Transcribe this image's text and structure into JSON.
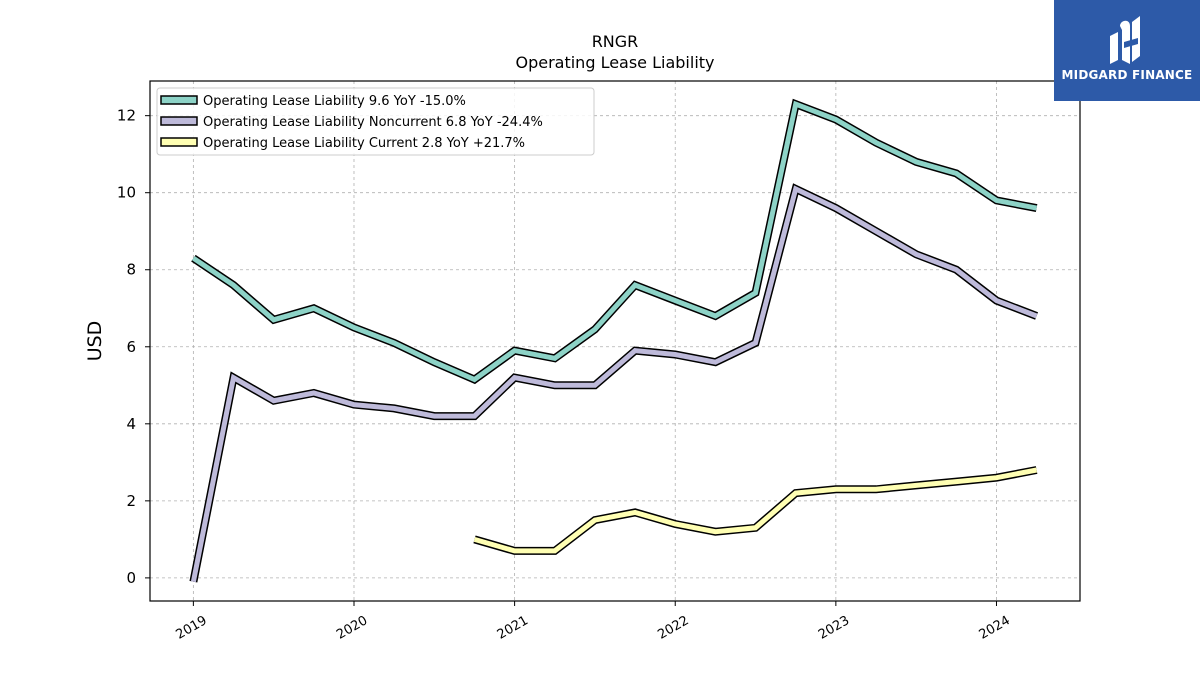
{
  "chart_data": {
    "type": "line",
    "title": "RNGR",
    "subtitle": "Operating Lease Liability",
    "ylabel": "USD",
    "xlabel": "",
    "ylim": [
      -0.6,
      12.9
    ],
    "xlim": [
      2018.73,
      2024.52
    ],
    "yticks": [
      0,
      2,
      4,
      6,
      8,
      10,
      12
    ],
    "xticks": [
      2019,
      2020,
      2021,
      2022,
      2023,
      2024
    ],
    "xtick_labels": [
      "2019",
      "2020",
      "2021",
      "2022",
      "2023",
      "2024"
    ],
    "grid": true,
    "legend_position": "top-left",
    "series": [
      {
        "name": "Operating Lease Liability  9.6 YoY -15.0%",
        "color": "#8dd3c7",
        "x": [
          2019.0,
          2019.25,
          2019.5,
          2019.75,
          2020.0,
          2020.25,
          2020.5,
          2020.75,
          2021.0,
          2021.25,
          2021.5,
          2021.75,
          2022.0,
          2022.25,
          2022.5,
          2022.75,
          2023.0,
          2023.25,
          2023.5,
          2023.75,
          2024.0,
          2024.25
        ],
        "y": [
          8.3,
          7.6,
          6.7,
          7.0,
          6.5,
          6.1,
          5.6,
          5.15,
          5.9,
          5.7,
          6.45,
          7.6,
          7.2,
          6.8,
          7.4,
          12.3,
          11.9,
          11.3,
          10.8,
          10.5,
          9.8,
          9.6
        ]
      },
      {
        "name": "Operating Lease Liability Noncurrent  6.8 YoY -24.4%",
        "color": "#bebada",
        "x": [
          2019.0,
          2019.25,
          2019.5,
          2019.75,
          2020.0,
          2020.25,
          2020.5,
          2020.75,
          2021.0,
          2021.25,
          2021.5,
          2021.75,
          2022.0,
          2022.25,
          2022.5,
          2022.75,
          2023.0,
          2023.25,
          2023.5,
          2023.75,
          2024.0,
          2024.25
        ],
        "y": [
          -0.1,
          5.2,
          4.6,
          4.8,
          4.5,
          4.4,
          4.2,
          4.2,
          5.2,
          5.0,
          5.0,
          5.9,
          5.8,
          5.6,
          6.1,
          10.1,
          9.6,
          9.0,
          8.4,
          8.0,
          7.2,
          6.8
        ]
      },
      {
        "name": "Operating Lease Liability Current  2.8 YoY +21.7%",
        "color": "#ffffb3",
        "x": [
          2020.75,
          2021.0,
          2021.25,
          2021.5,
          2021.75,
          2022.0,
          2022.25,
          2022.5,
          2022.75,
          2023.0,
          2023.25,
          2023.5,
          2023.75,
          2024.0,
          2024.25
        ],
        "y": [
          1.0,
          0.7,
          0.7,
          1.5,
          1.7,
          1.4,
          1.2,
          1.3,
          2.2,
          2.3,
          2.3,
          2.4,
          2.5,
          2.6,
          2.8
        ]
      }
    ]
  },
  "logo": {
    "text": "MIDGARD FINANCE",
    "bg_color": "#2d5aa8"
  }
}
